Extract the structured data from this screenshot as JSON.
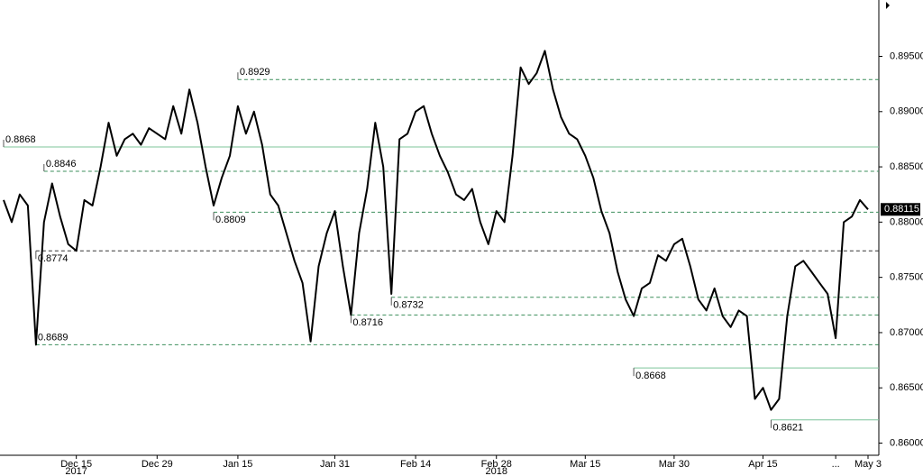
{
  "chart_data": {
    "type": "line",
    "color": "#000000",
    "categories": [
      null,
      null,
      null,
      null,
      null,
      null,
      null,
      null,
      null,
      "Dec 15",
      null,
      null,
      null,
      null,
      null,
      null,
      null,
      null,
      null,
      "Dec 29",
      null,
      null,
      null,
      null,
      null,
      null,
      null,
      null,
      null,
      "Jan 15",
      null,
      null,
      null,
      null,
      null,
      null,
      null,
      null,
      null,
      null,
      null,
      "Jan 31",
      null,
      null,
      null,
      null,
      null,
      null,
      null,
      null,
      null,
      "Feb 14",
      null,
      null,
      null,
      null,
      null,
      null,
      null,
      null,
      null,
      "Feb 28",
      null,
      null,
      null,
      null,
      null,
      null,
      null,
      null,
      null,
      null,
      "Mar 15",
      null,
      null,
      null,
      null,
      null,
      null,
      null,
      null,
      null,
      null,
      "Mar 30",
      null,
      null,
      null,
      null,
      null,
      null,
      null,
      null,
      null,
      null,
      "Apr 15",
      null,
      null,
      null,
      null,
      null,
      null,
      null,
      null,
      "...",
      null,
      null,
      null,
      "May 3"
    ],
    "category_years": [
      null,
      null,
      null,
      null,
      null,
      null,
      null,
      null,
      null,
      "2017",
      null,
      null,
      null,
      null,
      null,
      null,
      null,
      null,
      null,
      null,
      null,
      null,
      null,
      null,
      null,
      null,
      null,
      null,
      null,
      null,
      null,
      null,
      null,
      null,
      null,
      null,
      null,
      null,
      null,
      null,
      null,
      null,
      null,
      null,
      null,
      null,
      null,
      null,
      null,
      null,
      null,
      null,
      null,
      null,
      null,
      null,
      null,
      null,
      null,
      null,
      null,
      "2018",
      null,
      null,
      null,
      null,
      null,
      null,
      null,
      null,
      null,
      null,
      null,
      null,
      null,
      null,
      null,
      null,
      null,
      null,
      null,
      null,
      null,
      null,
      null,
      null,
      null,
      null,
      null,
      null,
      null,
      null,
      null,
      null,
      null,
      null,
      null,
      null,
      null,
      null,
      null,
      null,
      null,
      null,
      null,
      null,
      null,
      null
    ],
    "values": [
      0.882,
      0.88,
      0.8825,
      0.8815,
      0.8689,
      0.88,
      0.8835,
      0.8805,
      0.878,
      0.8774,
      0.882,
      0.8815,
      0.885,
      0.889,
      0.886,
      0.8875,
      0.888,
      0.887,
      0.8885,
      0.888,
      0.8875,
      0.8905,
      0.888,
      0.892,
      0.889,
      0.885,
      0.8815,
      0.884,
      0.886,
      0.8905,
      0.888,
      0.89,
      0.887,
      0.8825,
      0.8815,
      0.879,
      0.8765,
      0.8745,
      0.8692,
      0.876,
      0.879,
      0.881,
      0.876,
      0.8716,
      0.879,
      0.883,
      0.889,
      0.885,
      0.8735,
      0.8875,
      0.888,
      0.89,
      0.8905,
      0.888,
      0.886,
      0.8845,
      0.8825,
      0.882,
      0.883,
      0.88,
      0.878,
      0.881,
      0.88,
      0.886,
      0.894,
      0.8925,
      0.8935,
      0.8955,
      0.892,
      0.8895,
      0.888,
      0.8875,
      0.886,
      0.884,
      0.881,
      0.879,
      0.8755,
      0.873,
      0.8715,
      0.874,
      0.8745,
      0.877,
      0.8765,
      0.878,
      0.8785,
      0.876,
      0.873,
      0.872,
      0.874,
      0.8715,
      0.8705,
      0.872,
      0.8715,
      0.864,
      0.865,
      0.863,
      0.864,
      0.8715,
      0.876,
      0.8765,
      0.8755,
      0.8745,
      0.8735,
      0.8695,
      0.88,
      0.8805,
      0.882,
      0.88115
    ],
    "ylim": [
      0.8589,
      0.9001
    ],
    "yticks": [
      {
        "value": 0.86,
        "label": "0.86000"
      },
      {
        "value": 0.865,
        "label": "0.86500"
      },
      {
        "value": 0.87,
        "label": "0.87000"
      },
      {
        "value": 0.875,
        "label": "0.87500"
      },
      {
        "value": 0.88,
        "label": "0.88000"
      },
      {
        "value": 0.885,
        "label": "0.88500"
      },
      {
        "value": 0.89,
        "label": "0.89000"
      },
      {
        "value": 0.895,
        "label": "0.89500"
      }
    ],
    "levels": [
      {
        "value": 0.8929,
        "start": 29,
        "style": "dashed",
        "side": "above"
      },
      {
        "value": 0.8868,
        "start": 0,
        "style": "solid",
        "side": "above"
      },
      {
        "value": 0.8846,
        "start": 5,
        "style": "dashed",
        "side": "above"
      },
      {
        "value": 0.8809,
        "start": 26,
        "style": "dashed",
        "side": "below"
      },
      {
        "value": 0.8774,
        "start": 4,
        "style": "dashed-dark",
        "side": "below"
      },
      {
        "value": 0.8689,
        "start": 4,
        "style": "dashed",
        "side": "above"
      },
      {
        "value": 0.8716,
        "start": 43,
        "style": "dashed",
        "side": "below"
      },
      {
        "value": 0.8732,
        "start": 48,
        "style": "dashed",
        "side": "below"
      },
      {
        "value": 0.8668,
        "start": 78,
        "style": "solid",
        "side": "below"
      },
      {
        "value": 0.8621,
        "start": 95,
        "style": "solid",
        "side": "below"
      }
    ]
  }
}
